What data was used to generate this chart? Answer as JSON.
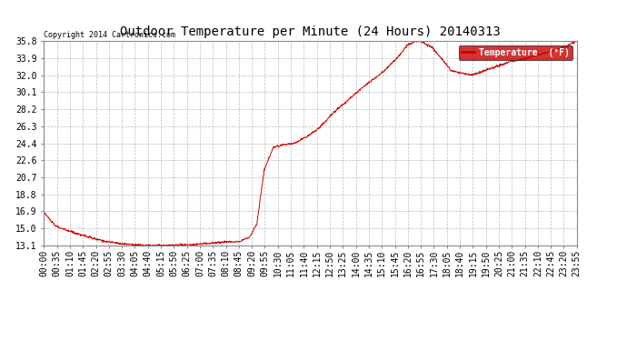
{
  "title": "Outdoor Temperature per Minute (24 Hours) 20140313",
  "copyright_text": "Copyright 2014 Cartronics.com",
  "legend_label": "Temperature  (°F)",
  "line_color": "#cc0000",
  "background_color": "#ffffff",
  "grid_color": "#bbbbbb",
  "yticks": [
    13.1,
    15.0,
    16.9,
    18.8,
    20.7,
    22.6,
    24.4,
    26.3,
    28.2,
    30.1,
    32.0,
    33.9,
    35.8
  ],
  "xtick_labels": [
    "00:00",
    "00:35",
    "01:10",
    "01:45",
    "02:20",
    "02:55",
    "03:30",
    "04:05",
    "04:40",
    "05:15",
    "05:50",
    "06:25",
    "07:00",
    "07:35",
    "08:10",
    "08:45",
    "09:20",
    "09:55",
    "10:30",
    "11:05",
    "11:40",
    "12:15",
    "12:50",
    "13:25",
    "14:00",
    "14:35",
    "15:10",
    "15:45",
    "16:20",
    "16:55",
    "17:30",
    "18:05",
    "18:40",
    "19:15",
    "19:50",
    "20:25",
    "21:00",
    "21:35",
    "22:10",
    "22:45",
    "23:20",
    "23:55"
  ],
  "key_times": [
    0,
    30,
    60,
    100,
    140,
    175,
    210,
    245,
    280,
    310,
    340,
    370,
    400,
    430,
    460,
    490,
    510,
    530,
    555,
    575,
    595,
    620,
    650,
    680,
    710,
    745,
    780,
    820,
    865,
    920,
    960,
    980,
    1000,
    1015,
    1030,
    1045,
    1060,
    1080,
    1100,
    1130,
    1155,
    1190,
    1225,
    1260,
    1295,
    1330,
    1365,
    1400,
    1439
  ],
  "key_temps": [
    16.8,
    15.3,
    14.8,
    14.3,
    13.8,
    13.5,
    13.3,
    13.2,
    13.1,
    13.1,
    13.1,
    13.2,
    13.2,
    13.3,
    13.4,
    13.5,
    13.5,
    13.6,
    14.0,
    15.5,
    21.5,
    24.0,
    24.3,
    24.5,
    25.2,
    26.2,
    27.8,
    29.2,
    30.8,
    32.5,
    34.2,
    35.3,
    35.7,
    35.8,
    35.5,
    35.2,
    34.5,
    33.5,
    32.5,
    32.2,
    32.0,
    32.5,
    33.0,
    33.5,
    33.8,
    34.2,
    34.6,
    35.0,
    35.8
  ]
}
